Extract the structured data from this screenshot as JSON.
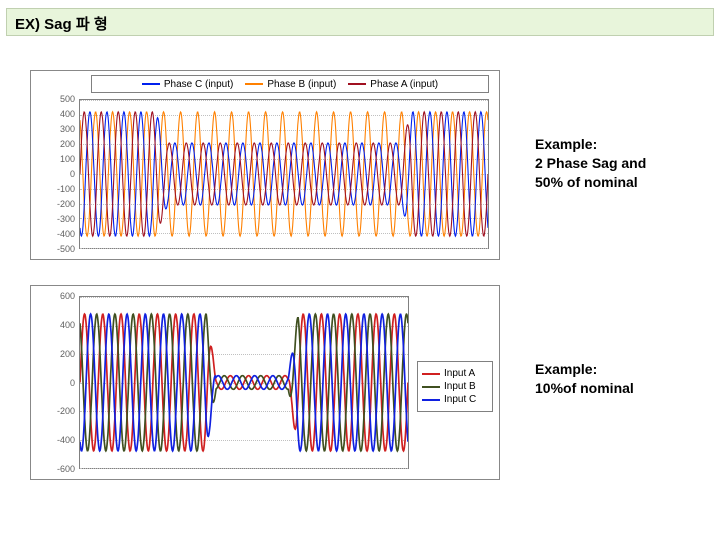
{
  "title": "EX) Sag 파 형",
  "captions": {
    "c1_line1": "Example:",
    "c1_line2": "2 Phase Sag and",
    "c1_line3": "50% of nominal",
    "c2_line1": "Example:",
    "c2_line2": "10%of nominal"
  },
  "chart1": {
    "type": "line",
    "legend": [
      {
        "label": "Phase C (input)",
        "color": "#0020ee"
      },
      {
        "label": "Phase B (input)",
        "color": "#ff8000"
      },
      {
        "label": "Phase A (input)",
        "color": "#a01020"
      }
    ],
    "ylim": [
      -500,
      500
    ],
    "yticks": [
      500,
      400,
      300,
      200,
      100,
      0,
      -100,
      -200,
      -300,
      -400,
      -500
    ],
    "xlim": [
      0,
      200
    ],
    "grid_color": "#c0c0c0",
    "background_color": "#ffffff",
    "series": [
      {
        "name": "Phase B",
        "color": "#ff8000",
        "amplitude": 420,
        "cycles": 24,
        "phase_deg": 120,
        "sag_start": 0,
        "sag_end": 0,
        "sag_amp": 420
      },
      {
        "name": "Phase C",
        "color": "#0020ee",
        "amplitude": 420,
        "cycles": 24,
        "phase_deg": 240,
        "sag_start": 40,
        "sag_end": 160,
        "sag_amp": 210
      },
      {
        "name": "Phase A",
        "color": "#a01020",
        "amplitude": 420,
        "cycles": 24,
        "phase_deg": 0,
        "sag_start": 40,
        "sag_end": 160,
        "sag_amp": 210
      }
    ],
    "line_width": 1.1,
    "title_fontsize": 10
  },
  "chart2": {
    "type": "line",
    "legend": [
      {
        "label": "Input A",
        "color": "#d02020"
      },
      {
        "label": "Input B",
        "color": "#405020"
      },
      {
        "label": "Input C",
        "color": "#1020e0"
      }
    ],
    "ylim": [
      -600,
      600
    ],
    "yticks": [
      600,
      400,
      200,
      0,
      -200,
      -400,
      -600
    ],
    "xlim": [
      0,
      200
    ],
    "grid_color": "#c0c0c0",
    "background_color": "#ffffff",
    "series": [
      {
        "name": "Input A",
        "color": "#d02020",
        "amplitude": 480,
        "cycles": 18,
        "phase_deg": 0,
        "sag_start": 80,
        "sag_end": 130,
        "sag_amp": 48
      },
      {
        "name": "Input B",
        "color": "#405020",
        "amplitude": 480,
        "cycles": 18,
        "phase_deg": 120,
        "sag_start": 80,
        "sag_end": 130,
        "sag_amp": 48
      },
      {
        "name": "Input C",
        "color": "#1020e0",
        "amplitude": 480,
        "cycles": 18,
        "phase_deg": 240,
        "sag_start": 80,
        "sag_end": 130,
        "sag_amp": 48
      }
    ],
    "line_width": 1.7,
    "title_fontsize": 10
  },
  "colors": {
    "title_bg": "#e8f5db",
    "border": "#888888"
  }
}
